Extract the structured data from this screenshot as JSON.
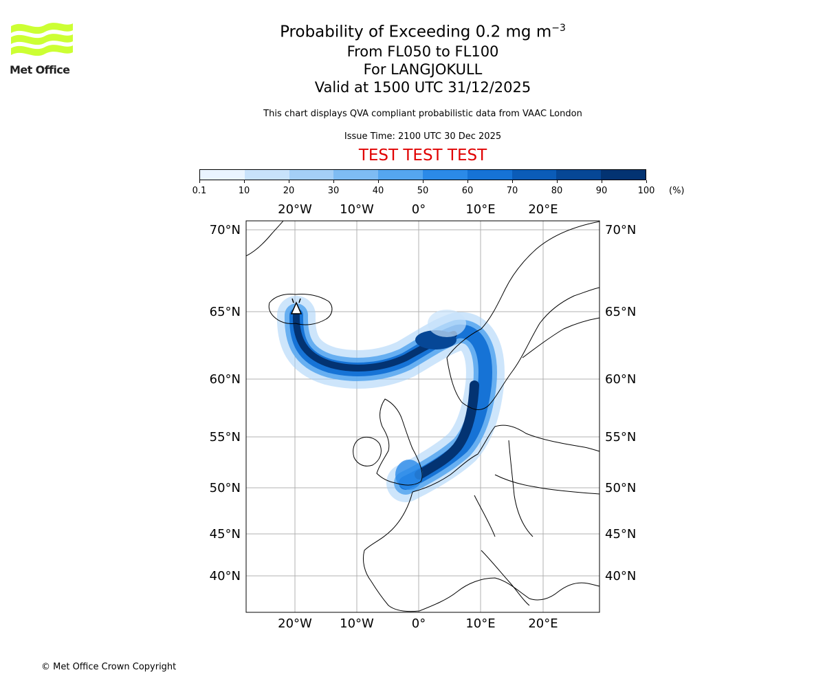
{
  "branding": {
    "logo_text": "Met Office",
    "logo_color": "#ccff33",
    "copyright": "© Met Office Crown Copyright"
  },
  "title": {
    "line1_prefix": "Probability of Exceeding 0.2 mg m",
    "line1_exponent": "−3",
    "line2": "From FL050 to FL100",
    "line3": "For LANGJOKULL",
    "line4": "Valid at 1500 UTC 31/12/2025"
  },
  "notes": {
    "compliance": "This chart displays QVA compliant probabilistic data from VAAC London",
    "issue_time": "Issue Time: 2100 UTC 30 Dec 2025",
    "test_banner": "TEST TEST TEST",
    "test_color": "#e00000"
  },
  "colorbar": {
    "unit": "(%)",
    "tick_labels": [
      "0.1",
      "10",
      "20",
      "30",
      "40",
      "50",
      "60",
      "70",
      "80",
      "90",
      "100"
    ],
    "colors": [
      "#eaf4ff",
      "#c8e2fb",
      "#a4cff7",
      "#7ebcf3",
      "#55a6ef",
      "#2b8ae8",
      "#1673d6",
      "#0b5cb8",
      "#064796",
      "#033372"
    ]
  },
  "map": {
    "lon_ticks": [
      "20°W",
      "10°W",
      "0°",
      "10°E",
      "20°E"
    ],
    "lat_ticks": [
      "70°N",
      "65°N",
      "60°N",
      "55°N",
      "50°N",
      "45°N",
      "40°N"
    ],
    "volcano": "LANGJOKULL",
    "plume_color_dark": "#033372",
    "plume_color_mid": "#1673d6",
    "plume_color_light": "#a4cff7"
  }
}
